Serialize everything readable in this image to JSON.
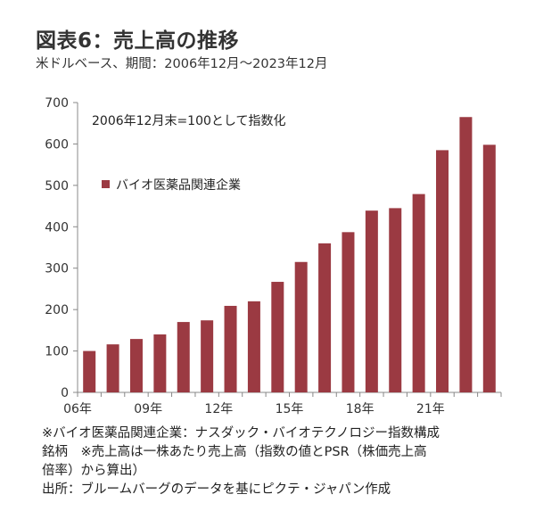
{
  "header": {
    "title": "図表6：売上高の推移",
    "subtitle": "米ドルベース、期間：2006年12月～2023年12月"
  },
  "chart_data": {
    "type": "bar",
    "categories": [
      "06年",
      "",
      "",
      "09年",
      "",
      "",
      "12年",
      "",
      "",
      "15年",
      "",
      "",
      "18年",
      "",
      "",
      "21年",
      "",
      ""
    ],
    "series": [
      {
        "name": "バイオ医薬品関連企業",
        "color": "#9b3a42",
        "values": [
          100,
          116,
          129,
          140,
          170,
          174,
          209,
          220,
          267,
          315,
          360,
          387,
          439,
          445,
          479,
          585,
          665,
          598
        ]
      }
    ],
    "annotation": "2006年12月末=100として指数化",
    "ylim": [
      0,
      700
    ],
    "yticks": [
      0,
      100,
      200,
      300,
      400,
      500,
      600,
      700
    ],
    "legend_position": "top-left",
    "grid": false
  },
  "footnotes": [
    "※バイオ医薬品関連企業：ナスダック・バイオテクノロジー指数構成",
    "銘柄　※売上高は一株あたり売上高（指数の値とPSR（株価売上高",
    "倍率）から算出）",
    "出所：ブルームバーグのデータを基にピクテ・ジャパン作成"
  ]
}
